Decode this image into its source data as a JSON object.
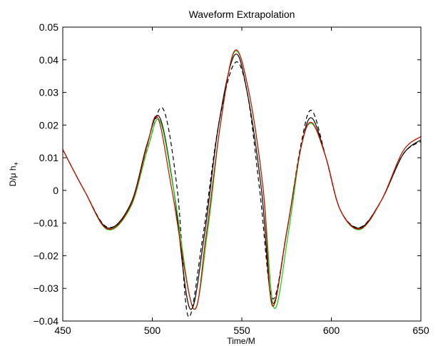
{
  "chart_data": {
    "type": "line",
    "title": "Waveform Extrapolation",
    "xlabel": "Time/M",
    "ylabel_main": "D/μ h",
    "ylabel_sub": "+",
    "xlim": [
      450,
      650
    ],
    "ylim": [
      -0.04,
      0.05
    ],
    "xticks": [
      450,
      500,
      550,
      600,
      650
    ],
    "xtick_labels": [
      "450",
      "500",
      "550",
      "600",
      "650"
    ],
    "yticks": [
      -0.04,
      -0.03,
      -0.02,
      -0.01,
      0,
      0.01,
      0.02,
      0.03,
      0.04,
      0.05
    ],
    "ytick_labels": [
      "−0.04",
      "−0.03",
      "−0.02",
      "−0.01",
      "0",
      "0.01",
      "0.02",
      "0.03",
      "0.04",
      "0.05"
    ],
    "grid": false,
    "series": [
      {
        "color": "#000000",
        "dash": "6,4",
        "x": [
          450,
          462,
          475,
          488,
          498,
          506,
          514,
          520,
          528,
          537,
          546,
          553,
          560,
          567,
          575,
          583,
          589,
          597,
          605,
          616,
          628,
          640,
          650
        ],
        "y": [
          0.0125,
          0.0,
          -0.0113,
          -0.0045,
          0.014,
          0.025,
          0.0,
          -0.0385,
          -0.015,
          0.02,
          0.039,
          0.03,
          0.0,
          -0.033,
          -0.013,
          0.014,
          0.0245,
          0.01,
          -0.006,
          -0.0113,
          -0.003,
          0.011,
          0.015
        ]
      },
      {
        "color": "#000000",
        "dash": "",
        "x": [
          450,
          462,
          475,
          488,
          497,
          504,
          512,
          521,
          529,
          537,
          546,
          553,
          561,
          567,
          575,
          583,
          589,
          597,
          605,
          616,
          628,
          640,
          650
        ],
        "y": [
          0.0125,
          0.0,
          -0.0115,
          -0.004,
          0.014,
          0.0225,
          0.0,
          -0.0362,
          -0.014,
          0.02,
          0.0415,
          0.03,
          0.0,
          -0.0345,
          -0.013,
          0.013,
          0.0222,
          0.01,
          -0.006,
          -0.0115,
          -0.003,
          0.011,
          0.0155
        ]
      },
      {
        "color": "#00dd00",
        "dash": "",
        "x": [
          450,
          462,
          475,
          488,
          497,
          504,
          512,
          523,
          531,
          538,
          546,
          554,
          562,
          568,
          576,
          583,
          589,
          597,
          605,
          616,
          628,
          640,
          650
        ],
        "y": [
          0.0125,
          0.0,
          -0.012,
          -0.005,
          0.012,
          0.0215,
          0.0,
          -0.0362,
          -0.012,
          0.02,
          0.0425,
          0.03,
          0.0,
          -0.036,
          -0.013,
          0.013,
          0.0205,
          0.01,
          -0.006,
          -0.012,
          -0.003,
          0.012,
          0.0165
        ]
      },
      {
        "color": "#dd0000",
        "dash": "",
        "x": [
          450,
          462,
          475,
          488,
          497,
          503,
          511,
          523,
          530,
          538,
          546,
          554,
          562,
          567,
          575,
          583,
          589,
          597,
          605,
          616,
          628,
          640,
          650
        ],
        "y": [
          0.0125,
          0.0,
          -0.0118,
          -0.0045,
          0.0135,
          0.0223,
          0.0,
          -0.0362,
          -0.014,
          0.02,
          0.0428,
          0.03,
          0.0,
          -0.0353,
          -0.013,
          0.013,
          0.0208,
          0.01,
          -0.006,
          -0.0118,
          -0.003,
          0.012,
          0.0165
        ]
      }
    ]
  }
}
